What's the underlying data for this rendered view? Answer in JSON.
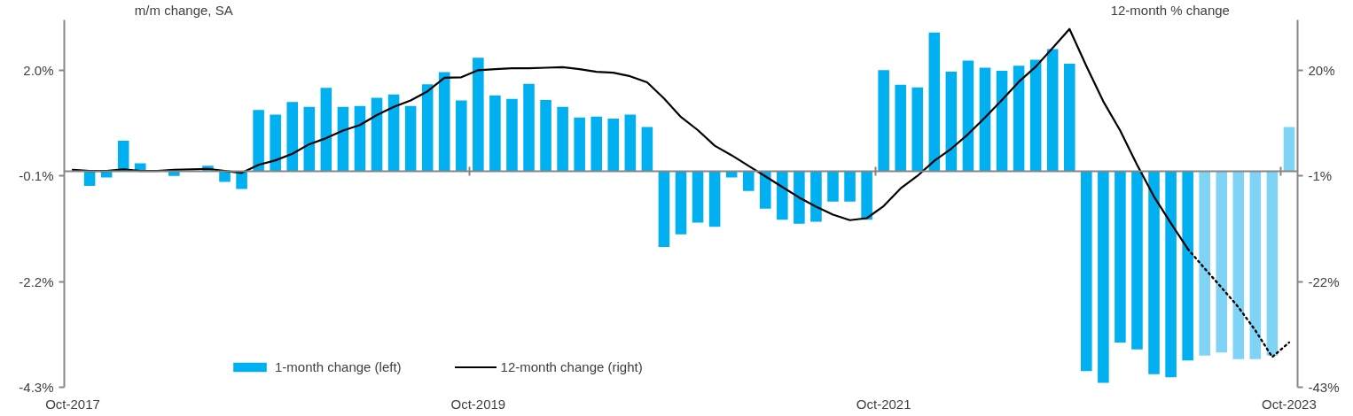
{
  "chart_data": {
    "type": "bar",
    "ylabel": "m/m change, SA",
    "y2label": "12-month % change",
    "categories": [
      "Oct-2017",
      null,
      null,
      null,
      null,
      null,
      null,
      null,
      null,
      null,
      null,
      null,
      null,
      null,
      null,
      null,
      null,
      null,
      null,
      null,
      null,
      null,
      null,
      null,
      "Oct-2019",
      null,
      null,
      null,
      null,
      null,
      null,
      null,
      null,
      null,
      null,
      null,
      null,
      null,
      null,
      null,
      null,
      null,
      null,
      null,
      null,
      null,
      null,
      null,
      "Oct-2021",
      null,
      null,
      null,
      null,
      null,
      null,
      null,
      null,
      null,
      null,
      null,
      null,
      null,
      null,
      null,
      null,
      null,
      null,
      null,
      null,
      null,
      null,
      null,
      "Oct-2023"
    ],
    "series": [
      {
        "name": "1-month change (left)",
        "color": "#00b0f0",
        "values": [
          0,
          -0.3,
          -0.13,
          0.6,
          0.15,
          0,
          -0.1,
          0,
          0.1,
          -0.22,
          -0.36,
          1.21,
          1.12,
          1.37,
          1.27,
          1.65,
          1.27,
          1.29,
          1.45,
          1.52,
          1.29,
          1.72,
          1.96,
          1.4,
          2.25,
          1.5,
          1.43,
          1.73,
          1.41,
          1.27,
          1.06,
          1.08,
          1.04,
          1.12,
          0.87,
          -1.51,
          -1.26,
          -1.03,
          -1.11,
          -0.13,
          -0.4,
          -0.75,
          -0.97,
          -1.05,
          -1.01,
          -0.61,
          -0.61,
          -0.97,
          2.0,
          1.71,
          1.66,
          2.75,
          1.97,
          2.19,
          2.05,
          1.99,
          2.09,
          2.21,
          2.42,
          2.13,
          -3.98,
          -4.21,
          -3.41,
          -3.55,
          -4.04,
          -4.1,
          -3.77,
          null,
          null,
          null,
          null,
          null,
          null
        ]
      },
      {
        "color": "#7fd4f5",
        "values": [
          null,
          null,
          null,
          null,
          null,
          null,
          null,
          null,
          null,
          null,
          null,
          null,
          null,
          null,
          null,
          null,
          null,
          null,
          null,
          null,
          null,
          null,
          null,
          null,
          null,
          null,
          null,
          null,
          null,
          null,
          null,
          null,
          null,
          null,
          null,
          null,
          null,
          null,
          null,
          null,
          null,
          null,
          null,
          null,
          null,
          null,
          null,
          null,
          null,
          null,
          null,
          null,
          null,
          null,
          null,
          null,
          null,
          null,
          null,
          null,
          null,
          null,
          null,
          null,
          null,
          null,
          null,
          -3.67,
          -3.61,
          -3.74,
          -3.74,
          -3.67,
          0.87
        ]
      },
      {
        "type": "line",
        "name": "12-month change (right)",
        "color": "#000000",
        "axis": "y2",
        "values": [
          0.2,
          0,
          0,
          0.3,
          0,
          0,
          0.2,
          0.3,
          0.4,
          0,
          -0.4,
          1.2,
          2.1,
          3.4,
          5.3,
          6.5,
          8.0,
          9.1,
          11.1,
          12.7,
          14.0,
          15.8,
          18.5,
          18.6,
          20.0,
          20.2,
          20.4,
          20.4,
          20.5,
          20.6,
          20.2,
          19.7,
          19.5,
          18.8,
          17.6,
          14.4,
          10.7,
          8.1,
          5.0,
          3.1,
          1.0,
          -1.1,
          -3.2,
          -5.3,
          -7.1,
          -8.7,
          -9.8,
          -9.4,
          -7.0,
          -3.5,
          -1.0,
          2.0,
          4.4,
          7.3,
          10.6,
          14.1,
          17.7,
          20.7,
          24.4,
          28.2,
          20.8,
          13.8,
          8.0,
          1.2,
          -5.1,
          -10.4,
          -15.5,
          null,
          null,
          null,
          null,
          null,
          null
        ]
      },
      {
        "type": "line",
        "color": "#000000",
        "axis": "y2",
        "line_style": "dotted",
        "values": [
          null,
          null,
          null,
          null,
          null,
          null,
          null,
          null,
          null,
          null,
          null,
          null,
          null,
          null,
          null,
          null,
          null,
          null,
          null,
          null,
          null,
          null,
          null,
          null,
          null,
          null,
          null,
          null,
          null,
          null,
          null,
          null,
          null,
          null,
          null,
          null,
          null,
          null,
          null,
          null,
          null,
          null,
          null,
          null,
          null,
          null,
          null,
          null,
          null,
          null,
          null,
          null,
          null,
          null,
          null,
          null,
          null,
          null,
          null,
          null,
          null,
          null,
          null,
          null,
          null,
          null,
          -15.5,
          -19.4,
          -23.2,
          -27.1,
          -31.7,
          -37.0,
          -34.1
        ]
      }
    ],
    "ylim": [
      -4.3,
      3.0
    ],
    "yticks": [
      {
        "value": -4.3,
        "label": "-4.3%"
      },
      {
        "value": -2.2,
        "label": "-2.2%"
      },
      {
        "value": -0.1,
        "label": "-0.1%"
      },
      {
        "value": 2.0,
        "label": "2.0%"
      }
    ],
    "y2lim": [
      -43,
      30
    ],
    "y2ticks": [
      {
        "value": -43,
        "label": "-43%"
      },
      {
        "value": -22,
        "label": "-22%"
      },
      {
        "value": -1,
        "label": "-1%"
      },
      {
        "value": 20,
        "label": "20%"
      }
    ],
    "legend": "bottom left"
  }
}
